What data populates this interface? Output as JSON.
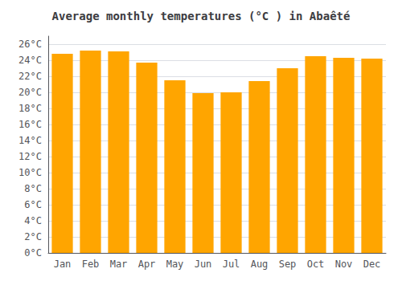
{
  "chart_data": {
    "type": "bar",
    "title": "Average monthly temperatures (°C ) in Abaêté",
    "categories": [
      "Jan",
      "Feb",
      "Mar",
      "Apr",
      "May",
      "Jun",
      "Jul",
      "Aug",
      "Sep",
      "Oct",
      "Nov",
      "Dec"
    ],
    "values": [
      24.8,
      25.2,
      25.1,
      23.7,
      21.5,
      19.9,
      20.0,
      21.4,
      23.0,
      24.5,
      24.3,
      24.2
    ],
    "color": "#FFA500",
    "ylim": [
      0,
      27
    ],
    "yticks": [
      {
        "value": 0,
        "label": "0°C"
      },
      {
        "value": 2,
        "label": "2°C"
      },
      {
        "value": 4,
        "label": "4°C"
      },
      {
        "value": 6,
        "label": "6°C"
      },
      {
        "value": 8,
        "label": "8°C"
      },
      {
        "value": 10,
        "label": "10°C"
      },
      {
        "value": 12,
        "label": "12°C"
      },
      {
        "value": 14,
        "label": "14°C"
      },
      {
        "value": 16,
        "label": "16°C"
      },
      {
        "value": 18,
        "label": "18°C"
      },
      {
        "value": 20,
        "label": "20°C"
      },
      {
        "value": 22,
        "label": "22°C"
      },
      {
        "value": 24,
        "label": "24°C"
      },
      {
        "value": 26,
        "label": "26°C"
      }
    ],
    "grid": true
  }
}
